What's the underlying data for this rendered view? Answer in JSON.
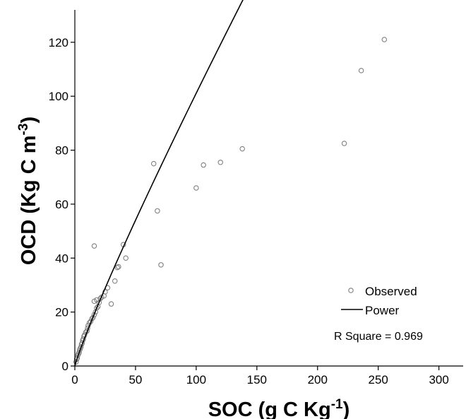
{
  "chart_data": {
    "type": "scatter",
    "xlabel": {
      "base": "SOC (g C Kg",
      "sup": "-1",
      "tail": ")"
    },
    "ylabel": {
      "base": "OCD (Kg C m",
      "sup": "-3",
      "tail": ")"
    },
    "xlim": [
      0,
      320
    ],
    "ylim": [
      0,
      132
    ],
    "x_ticks": [
      0,
      50,
      100,
      150,
      200,
      250,
      300
    ],
    "y_ticks": [
      0,
      20,
      40,
      60,
      80,
      100,
      120
    ],
    "legend": {
      "position": "bottom-right",
      "entries": [
        {
          "label": "Observed",
          "marker": "circle"
        },
        {
          "label": "Power",
          "marker": "line"
        }
      ]
    },
    "annotation": "R Square = 0.969",
    "series": [
      {
        "name": "Observed",
        "kind": "points",
        "points": [
          [
            1.0,
            1.5
          ],
          [
            1.5,
            2.5
          ],
          [
            2.0,
            3.0
          ],
          [
            2.5,
            4.0
          ],
          [
            3.0,
            4.5
          ],
          [
            3.5,
            5.0
          ],
          [
            4.0,
            6.0
          ],
          [
            4.5,
            6.5
          ],
          [
            5.0,
            7.0
          ],
          [
            5.5,
            8.0
          ],
          [
            6.0,
            8.5
          ],
          [
            6.5,
            9.5
          ],
          [
            7.0,
            10.0
          ],
          [
            7.5,
            11.0
          ],
          [
            8.0,
            11.5
          ],
          [
            9.0,
            12.5
          ],
          [
            10.0,
            13.0
          ],
          [
            10.5,
            14.0
          ],
          [
            11.0,
            15.0
          ],
          [
            12.0,
            16.0
          ],
          [
            13.0,
            16.5
          ],
          [
            14.0,
            17.5
          ],
          [
            15.0,
            18.0
          ],
          [
            16.0,
            19.0
          ],
          [
            17.0,
            20.0
          ],
          [
            18.0,
            21.5
          ],
          [
            19.0,
            22.0
          ],
          [
            20.0,
            23.5
          ],
          [
            21.0,
            25.0
          ],
          [
            22.0,
            25.5
          ],
          [
            18.0,
            24.5
          ],
          [
            16.0,
            24.0
          ],
          [
            24.0,
            26.0
          ],
          [
            25.0,
            27.5
          ],
          [
            27.0,
            29.0
          ],
          [
            30.0,
            23.0
          ],
          [
            33.0,
            31.5
          ],
          [
            35.0,
            36.5
          ],
          [
            36.0,
            36.8
          ],
          [
            40.0,
            45.0
          ],
          [
            42.0,
            40.0
          ],
          [
            16.0,
            44.5
          ],
          [
            65.0,
            75.0
          ],
          [
            68.0,
            57.5
          ],
          [
            71.0,
            37.5
          ],
          [
            100.0,
            66.0
          ],
          [
            106.0,
            74.5
          ],
          [
            120.0,
            75.5
          ],
          [
            138.0,
            80.5
          ],
          [
            222.0,
            82.5
          ],
          [
            236.0,
            109.5
          ],
          [
            255.0,
            121.0
          ]
        ]
      },
      {
        "name": "Power",
        "kind": "fit-line",
        "coefficient": 1.573,
        "exponent": 0.904,
        "x_range": [
          0.5,
          197
        ]
      }
    ]
  }
}
